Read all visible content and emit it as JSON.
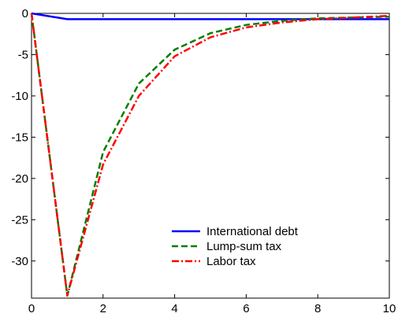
{
  "chart_data": {
    "type": "line",
    "title": "",
    "xlabel": "",
    "ylabel": "",
    "xlim": [
      0,
      10
    ],
    "ylim": [
      -34.5,
      0
    ],
    "xticks": [
      0,
      2,
      4,
      6,
      8,
      10
    ],
    "yticks": [
      0,
      -5,
      -10,
      -15,
      -20,
      -25,
      -30
    ],
    "grid": false,
    "legend_position": "bottom-center",
    "x": [
      0,
      1,
      2,
      3,
      4,
      5,
      6,
      7,
      8,
      9,
      10
    ],
    "series": [
      {
        "name": "International debt",
        "color": "#0000ff",
        "style": "solid",
        "values": [
          0,
          -0.7,
          -0.7,
          -0.7,
          -0.7,
          -0.7,
          -0.7,
          -0.7,
          -0.7,
          -0.7,
          -0.7
        ]
      },
      {
        "name": "Lump-sum tax",
        "color": "#007f00",
        "style": "dashed",
        "values": [
          0,
          -34.2,
          -16.8,
          -8.5,
          -4.4,
          -2.4,
          -1.4,
          -0.9,
          -0.6,
          -0.5,
          -0.4
        ]
      },
      {
        "name": "Labor tax",
        "color": "#ff0000",
        "style": "dashdot",
        "values": [
          0,
          -34.2,
          -18.3,
          -10.0,
          -5.2,
          -2.9,
          -1.7,
          -1.1,
          -0.7,
          -0.5,
          -0.3
        ]
      }
    ]
  }
}
